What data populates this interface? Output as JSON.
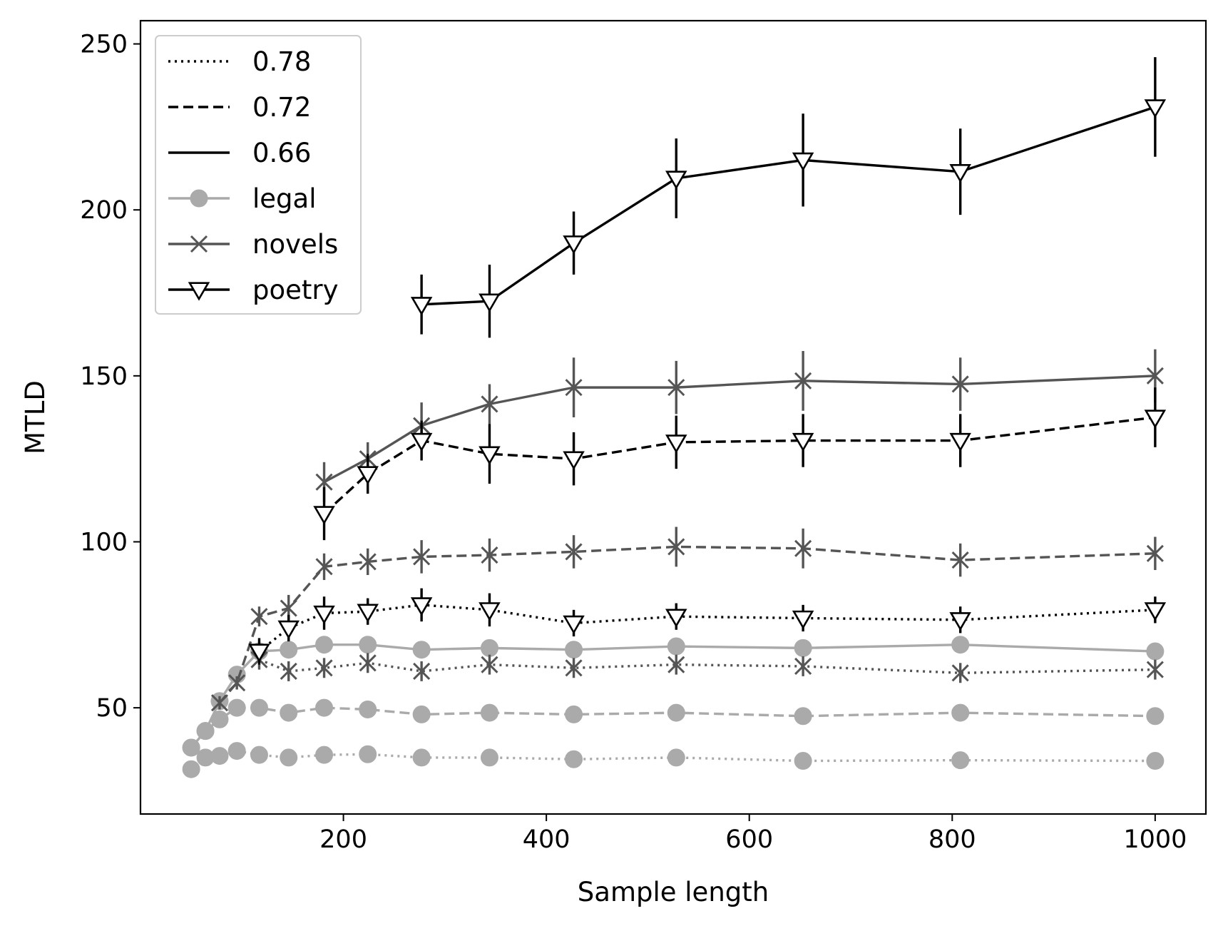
{
  "chart_data": {
    "type": "line",
    "xlabel": "Sample length",
    "ylabel": "MTLD",
    "xlim": [
      0,
      1050
    ],
    "ylim": [
      18,
      257
    ],
    "xticks": [
      200,
      400,
      600,
      800,
      1000
    ],
    "yticks": [
      50,
      100,
      150,
      200,
      250
    ],
    "grid": false,
    "legend": {
      "position": "top-left",
      "entries": [
        {
          "label": "0.78",
          "style": "dotted"
        },
        {
          "label": "0.72",
          "style": "dashed"
        },
        {
          "label": "0.66",
          "style": "solid"
        },
        {
          "label": "legal",
          "marker": "circle",
          "color": "#aaaaaa"
        },
        {
          "label": "novels",
          "marker": "x",
          "color": "#555555"
        },
        {
          "label": "poetry",
          "marker": "triangle-down",
          "color": "#000000"
        }
      ]
    },
    "series": [
      {
        "name": "legal",
        "threshold": "0.78",
        "style": "dotted",
        "marker": "circle",
        "color": "#aaaaaa",
        "x": [
          50,
          64,
          78,
          95,
          117,
          146,
          181,
          224,
          277,
          344,
          427,
          528,
          653,
          808,
          1000
        ],
        "y": [
          31.5,
          35,
          35.5,
          37,
          35.8,
          35,
          35.8,
          36,
          35,
          35,
          34.5,
          35,
          34,
          34.2,
          34
        ]
      },
      {
        "name": "legal",
        "threshold": "0.72",
        "style": "dashed",
        "marker": "circle",
        "color": "#aaaaaa",
        "x": [
          50,
          64,
          78,
          95,
          117,
          146,
          181,
          224,
          277,
          344,
          427,
          528,
          653,
          808,
          1000
        ],
        "y": [
          38,
          43,
          46.5,
          50,
          50,
          48.5,
          50,
          49.5,
          48,
          48.5,
          48,
          48.5,
          47.5,
          48.5,
          47.5
        ]
      },
      {
        "name": "legal",
        "threshold": "0.66",
        "style": "solid",
        "marker": "circle",
        "color": "#aaaaaa",
        "x": [
          50,
          64,
          78,
          95,
          117,
          146,
          181,
          224,
          277,
          344,
          427,
          528,
          653,
          808,
          1000
        ],
        "y": [
          38,
          43,
          52,
          60,
          67,
          67.5,
          69,
          69,
          67.5,
          68,
          67.5,
          68.5,
          68,
          69,
          67
        ]
      },
      {
        "name": "novels",
        "threshold": "0.78",
        "style": "dotted",
        "marker": "x",
        "color": "#555555",
        "x": [
          117,
          146,
          181,
          224,
          277,
          344,
          427,
          528,
          653,
          808,
          1000
        ],
        "y": [
          64.5,
          61,
          62,
          63.5,
          61,
          63,
          62,
          63,
          62.5,
          60.5,
          61.5
        ],
        "err": [
          3,
          3,
          3,
          3,
          3,
          3,
          3,
          3,
          3,
          3,
          3
        ]
      },
      {
        "name": "novels",
        "threshold": "0.72",
        "style": "dashed",
        "marker": "x",
        "color": "#555555",
        "x": [
          78,
          95,
          117,
          146,
          181,
          224,
          277,
          344,
          427,
          528,
          653,
          808,
          1000
        ],
        "y": [
          51.5,
          57.5,
          77.5,
          80,
          92.5,
          94,
          95.5,
          96,
          97,
          98.5,
          98,
          94.5,
          96.5
        ],
        "err": [
          2,
          2,
          3,
          4,
          4,
          4,
          5,
          5,
          5,
          6,
          6,
          5,
          5
        ]
      },
      {
        "name": "novels",
        "threshold": "0.66",
        "style": "solid",
        "marker": "x",
        "color": "#555555",
        "x": [
          181,
          224,
          277,
          344,
          427,
          528,
          653,
          808,
          1000
        ],
        "y": [
          118,
          125,
          135,
          141.5,
          146.5,
          146.5,
          148.5,
          147.5,
          150
        ],
        "err": [
          6,
          5,
          7,
          6,
          9,
          8,
          9,
          8,
          8
        ]
      },
      {
        "name": "poetry",
        "threshold": "0.78",
        "style": "dotted",
        "marker": "triangle-down",
        "color": "#000000",
        "x": [
          117,
          146,
          181,
          224,
          277,
          344,
          427,
          528,
          653,
          808,
          1000
        ],
        "y": [
          67,
          74,
          78.5,
          79,
          81,
          79.5,
          75.5,
          77.5,
          77,
          76.5,
          79.5
        ],
        "err": [
          4,
          4,
          5,
          4,
          5,
          5,
          4,
          4,
          4,
          4,
          4
        ]
      },
      {
        "name": "poetry",
        "threshold": "0.72",
        "style": "dashed",
        "marker": "triangle-down",
        "color": "#000000",
        "x": [
          181,
          224,
          277,
          344,
          427,
          528,
          653,
          808,
          1000
        ],
        "y": [
          108.5,
          120.5,
          130.5,
          126.5,
          125,
          130,
          130.5,
          130.5,
          137.5
        ],
        "err": [
          8,
          6,
          6,
          9,
          8,
          8,
          8,
          8,
          9
        ]
      },
      {
        "name": "poetry",
        "threshold": "0.66",
        "style": "solid",
        "marker": "triangle-down",
        "color": "#000000",
        "x": [
          277,
          344,
          427,
          528,
          653,
          808,
          1000
        ],
        "y": [
          171.5,
          172.5,
          190,
          209.5,
          215,
          211.5,
          231
        ],
        "err": [
          9,
          11,
          9.5,
          12,
          14,
          13,
          15
        ]
      }
    ]
  }
}
